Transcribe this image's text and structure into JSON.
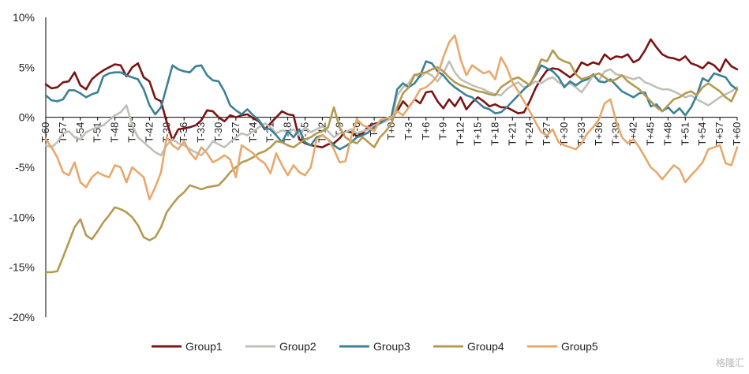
{
  "chart_data": {
    "type": "line",
    "title": "",
    "xlabel": "",
    "ylabel": "",
    "ylim": [
      -20,
      10
    ],
    "y_ticks": [
      10,
      5,
      0,
      -5,
      -10,
      -15,
      -20
    ],
    "y_tick_labels": [
      "10%",
      "5%",
      "0%",
      "-5%",
      "-10%",
      "-15%",
      "-20%"
    ],
    "x": [
      "T-60",
      "T-59",
      "T-58",
      "T-57",
      "T-56",
      "T-55",
      "T-54",
      "T-53",
      "T-52",
      "T-51",
      "T-50",
      "T-49",
      "T-48",
      "T-47",
      "T-46",
      "T-45",
      "T-44",
      "T-43",
      "T-42",
      "T-41",
      "T-40",
      "T-39",
      "T-38",
      "T-37",
      "T-36",
      "T-35",
      "T-34",
      "T-33",
      "T-32",
      "T-31",
      "T-30",
      "T-29",
      "T-28",
      "T-27",
      "T-26",
      "T-25",
      "T-24",
      "T-23",
      "T-22",
      "T-21",
      "T-20",
      "T-19",
      "T-18",
      "T-17",
      "T-16",
      "T-15",
      "T-14",
      "T-13",
      "T-12",
      "T-11",
      "T-10",
      "T-9",
      "T-8",
      "T-7",
      "T-6",
      "T-5",
      "T-4",
      "T-3",
      "T-2",
      "T-1",
      "T+0",
      "T+1",
      "T+2",
      "T+3",
      "T+4",
      "T+5",
      "T+6",
      "T+7",
      "T+8",
      "T+9",
      "T+10",
      "T+11",
      "T+12",
      "T+13",
      "T+14",
      "T+15",
      "T+16",
      "T+17",
      "T+18",
      "T+19",
      "T+20",
      "T+21",
      "T+22",
      "T+23",
      "T+24",
      "T+25",
      "T+26",
      "T+27",
      "T+28",
      "T+29",
      "T+30",
      "T+31",
      "T+32",
      "T+33",
      "T+34",
      "T+35",
      "T+36",
      "T+37",
      "T+38",
      "T+39",
      "T+40",
      "T+41",
      "T+42",
      "T+43",
      "T+44",
      "T+45",
      "T+46",
      "T+47",
      "T+48",
      "T+49",
      "T+50",
      "T+51",
      "T+52",
      "T+53",
      "T+54",
      "T+55",
      "T+56",
      "T+57",
      "T+58",
      "T+59",
      "T+60"
    ],
    "x_tick_labels": [
      "T-60",
      "T-57",
      "T-54",
      "T-51",
      "T-48",
      "T-45",
      "T-42",
      "T-39",
      "T-36",
      "T-33",
      "T-30",
      "T-27",
      "T-24",
      "T-21",
      "T-18",
      "T-15",
      "T-12",
      "T-9",
      "T-6",
      "T-3",
      "T+0",
      "T+3",
      "T+6",
      "T+9",
      "T+12",
      "T+15",
      "T+18",
      "T+21",
      "T+24",
      "T+27",
      "T+30",
      "T+33",
      "T+36",
      "T+39",
      "T+42",
      "T+45",
      "T+48",
      "T+51",
      "T+54",
      "T+57",
      "T+60"
    ],
    "legend_position": "bottom",
    "series": [
      {
        "name": "Group1",
        "color": "#7b1414",
        "values": [
          3.3,
          2.9,
          3.0,
          3.5,
          3.6,
          4.5,
          3.2,
          2.8,
          3.8,
          4.3,
          4.7,
          5.0,
          5.3,
          5.2,
          4.1,
          5.0,
          5.4,
          4.0,
          3.6,
          1.9,
          1.6,
          -0.5,
          -2.3,
          -1.2,
          -1.1,
          -1.0,
          -0.8,
          -0.3,
          0.7,
          0.6,
          0.0,
          -0.4,
          0.2,
          0.0,
          0.2,
          0.3,
          -0.1,
          -0.4,
          -1.2,
          -0.6,
          0.0,
          0.6,
          0.3,
          0.2,
          -2.2,
          -2.6,
          -2.8,
          -2.9,
          -3.0,
          -2.7,
          -2.6,
          -2.1,
          -1.4,
          -1.5,
          -1.9,
          -1.6,
          -0.9,
          -0.7,
          -0.5,
          -0.3,
          -0.1,
          0.6,
          1.6,
          1.0,
          1.8,
          1.4,
          2.5,
          2.6,
          1.6,
          0.9,
          1.8,
          1.1,
          2.0,
          0.8,
          1.5,
          2.0,
          1.6,
          1.1,
          1.3,
          1.0,
          1.0,
          0.7,
          0.4,
          0.5,
          1.6,
          2.9,
          3.9,
          4.7,
          4.9,
          4.8,
          4.4,
          4.0,
          4.5,
          5.5,
          5.2,
          5.5,
          5.3,
          6.3,
          5.8,
          6.1,
          6.0,
          6.3,
          5.5,
          5.8,
          6.7,
          7.8,
          7.0,
          6.3,
          6.0,
          5.9,
          5.7,
          6.1,
          5.4,
          5.2,
          4.9,
          5.5,
          5.2,
          4.6,
          5.8,
          5.1,
          4.8
        ]
      },
      {
        "name": "Group2",
        "color": "#c0c0b8",
        "values": [
          -2.8,
          -3.0,
          -2.5,
          -1.6,
          -1.4,
          -2.0,
          -2.2,
          -1.5,
          -1.2,
          -1.0,
          -0.8,
          -0.3,
          0.2,
          0.5,
          1.2,
          -0.8,
          -2.0,
          -2.5,
          -3.0,
          -3.5,
          -3.8,
          -2.8,
          -2.2,
          -2.6,
          -2.8,
          -3.2,
          -3.5,
          -3.8,
          -3.2,
          -2.4,
          -2.7,
          -3.0,
          -2.5,
          -2.0,
          -1.6,
          -1.8,
          -1.4,
          -1.0,
          -0.6,
          -1.0,
          -1.6,
          -1.3,
          -1.5,
          -1.2,
          -1.8,
          -1.0,
          -1.5,
          -1.2,
          -0.9,
          -1.4,
          -2.0,
          -1.6,
          -1.5,
          -1.2,
          -1.6,
          -1.4,
          -1.2,
          -0.8,
          -0.6,
          -0.4,
          -0.1,
          2.2,
          3.0,
          3.4,
          4.3,
          4.0,
          4.5,
          4.2,
          3.6,
          4.4,
          5.6,
          4.5,
          3.8,
          3.5,
          3.2,
          3.0,
          2.8,
          2.5,
          2.3,
          2.2,
          2.8,
          3.2,
          3.5,
          3.0,
          3.2,
          3.6,
          3.4,
          3.8,
          4.0,
          3.5,
          3.2,
          3.4,
          3.0,
          2.5,
          3.3,
          4.2,
          3.7,
          4.6,
          4.8,
          4.3,
          4.2,
          4.0,
          3.8,
          4.0,
          3.5,
          3.3,
          3.0,
          2.8,
          2.8,
          2.6,
          2.3,
          2.0,
          2.2,
          1.8,
          1.5,
          1.2,
          1.6,
          2.0,
          2.3,
          2.6,
          3.0
        ]
      },
      {
        "name": "Group3",
        "color": "#3b8196",
        "values": [
          2.2,
          1.7,
          1.6,
          1.8,
          2.7,
          2.7,
          2.4,
          2.0,
          2.3,
          2.5,
          4.1,
          4.4,
          4.5,
          4.5,
          4.2,
          4.0,
          3.8,
          2.8,
          1.2,
          0.3,
          1.0,
          3.1,
          5.2,
          4.8,
          4.6,
          4.5,
          5.1,
          5.2,
          4.2,
          3.7,
          3.6,
          2.6,
          1.2,
          0.7,
          0.3,
          0.8,
          0.2,
          -0.3,
          -1.1,
          -1.2,
          -1.8,
          -2.5,
          -1.4,
          -2.0,
          -1.2,
          -2.5,
          -2.8,
          -2.0,
          -1.8,
          -2.2,
          -2.8,
          -3.2,
          -2.9,
          -2.5,
          -2.0,
          -1.8,
          -1.5,
          -1.0,
          -0.6,
          -0.2,
          0.1,
          2.8,
          3.4,
          3.0,
          3.4,
          4.2,
          5.6,
          5.4,
          4.6,
          4.2,
          3.5,
          3.0,
          2.6,
          2.2,
          2.0,
          1.5,
          1.0,
          0.8,
          0.4,
          0.5,
          1.0,
          1.6,
          2.2,
          2.8,
          3.3,
          4.2,
          5.2,
          4.9,
          4.6,
          4.0,
          3.0,
          3.6,
          3.2,
          3.6,
          3.8,
          4.3,
          3.6,
          3.5,
          3.8,
          3.2,
          2.6,
          2.3,
          2.0,
          2.4,
          2.5,
          1.1,
          1.3,
          0.6,
          1.0,
          0.4,
          0.9,
          0.2,
          1.0,
          2.2,
          3.9,
          3.6,
          4.4,
          4.2,
          4.0,
          3.2,
          2.8
        ]
      },
      {
        "name": "Group4",
        "color": "#b59a4f",
        "values": [
          -15.5,
          -15.5,
          -15.4,
          -14.0,
          -12.5,
          -11.0,
          -10.2,
          -11.8,
          -12.2,
          -11.4,
          -10.5,
          -9.8,
          -9.0,
          -9.2,
          -9.5,
          -10.0,
          -10.8,
          -12.0,
          -12.3,
          -12.0,
          -11.0,
          -9.5,
          -8.7,
          -8.0,
          -7.5,
          -6.8,
          -7.0,
          -7.2,
          -7.0,
          -6.9,
          -6.8,
          -6.2,
          -5.5,
          -5.0,
          -4.5,
          -4.3,
          -4.0,
          -3.6,
          -3.4,
          -3.0,
          -2.4,
          -2.5,
          -2.8,
          -3.0,
          -2.6,
          -2.2,
          -2.0,
          -1.6,
          -1.4,
          -1.0,
          1.0,
          -1.0,
          -2.0,
          -2.4,
          -2.6,
          -2.0,
          -2.5,
          -3.0,
          -2.0,
          -1.4,
          -0.6,
          1.0,
          2.4,
          3.0,
          4.2,
          4.4,
          4.5,
          4.8,
          5.0,
          4.6,
          4.0,
          3.5,
          3.2,
          3.0,
          2.8,
          2.6,
          2.5,
          2.3,
          2.2,
          3.0,
          3.4,
          3.8,
          4.0,
          3.6,
          3.2,
          4.4,
          5.8,
          5.6,
          6.7,
          5.9,
          5.6,
          5.4,
          4.3,
          3.8,
          4.0,
          4.2,
          4.4,
          4.0,
          3.6,
          3.8,
          4.2,
          3.6,
          3.2,
          2.8,
          2.2,
          1.6,
          1.0,
          0.6,
          1.2,
          1.8,
          2.0,
          2.4,
          2.6,
          2.2,
          3.0,
          3.4,
          3.0,
          2.6,
          2.0,
          1.6,
          2.8
        ]
      },
      {
        "name": "Group5",
        "color": "#e8a86c",
        "values": [
          -2.2,
          -3.0,
          -4.0,
          -5.5,
          -5.8,
          -4.5,
          -6.5,
          -7.0,
          -6.0,
          -5.5,
          -5.8,
          -6.0,
          -4.8,
          -5.0,
          -6.5,
          -5.0,
          -5.5,
          -6.0,
          -8.2,
          -7.0,
          -5.5,
          -2.0,
          -2.8,
          -3.2,
          -2.4,
          -3.5,
          -4.2,
          -3.0,
          -3.6,
          -4.5,
          -4.2,
          -3.8,
          -4.2,
          -6.0,
          -2.8,
          -3.2,
          -3.6,
          -4.2,
          -4.6,
          -5.6,
          -3.6,
          -4.8,
          -5.8,
          -4.8,
          -5.5,
          -5.8,
          -5.0,
          -2.2,
          -1.8,
          -2.2,
          -3.2,
          -4.5,
          -4.4,
          -2.0,
          -0.2,
          -0.8,
          -1.0,
          -1.4,
          -0.3,
          -0.1,
          0.0,
          0.6,
          0.2,
          1.0,
          1.8,
          2.8,
          3.0,
          3.5,
          4.2,
          6.0,
          7.5,
          8.2,
          5.8,
          4.2,
          5.2,
          4.8,
          4.4,
          4.6,
          3.8,
          6.0,
          5.0,
          3.5,
          2.6,
          1.6,
          0.6,
          -0.5,
          -1.5,
          -1.8,
          -1.2,
          -2.5,
          -2.8,
          -3.0,
          -3.2,
          -2.6,
          -1.6,
          -1.0,
          -0.2,
          1.4,
          1.8,
          -0.4,
          -2.0,
          -2.6,
          -2.2,
          -3.0,
          -4.0,
          -5.0,
          -5.5,
          -6.2,
          -5.5,
          -4.8,
          -5.2,
          -6.5,
          -5.8,
          -5.2,
          -4.5,
          -3.2,
          -3.0,
          -2.8,
          -4.6,
          -4.8,
          -3.0
        ]
      }
    ]
  },
  "watermark": "格隆汇"
}
